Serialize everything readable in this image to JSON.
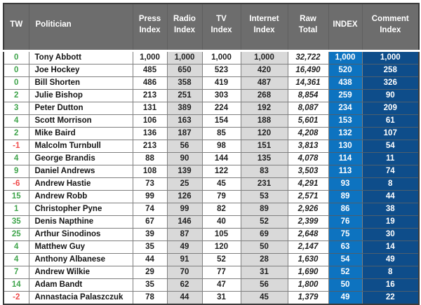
{
  "colors": {
    "header_bg": "#6d6d6d",
    "header_text": "#ffffff",
    "shaded_bg": "#d9d9d9",
    "index_bg": "#0d73c0",
    "comment_bg": "#0e4d8a",
    "positive_tw": "#3fa44b",
    "negative_tw": "#f04b4b"
  },
  "chart_data": {
    "type": "table",
    "title": "Politician media coverage index table",
    "columns": [
      {
        "id": "tw",
        "label_lines": [
          "TW"
        ]
      },
      {
        "id": "politician",
        "label_lines": [
          "Politician"
        ]
      },
      {
        "id": "press",
        "label_lines": [
          "Press",
          "Index"
        ]
      },
      {
        "id": "radio",
        "label_lines": [
          "Radio",
          "Index"
        ]
      },
      {
        "id": "tv",
        "label_lines": [
          "TV",
          "Index"
        ]
      },
      {
        "id": "internet",
        "label_lines": [
          "Internet",
          "Index"
        ]
      },
      {
        "id": "raw_total",
        "label_lines": [
          "Raw",
          "Total"
        ]
      },
      {
        "id": "index",
        "label_lines": [
          "INDEX"
        ]
      },
      {
        "id": "comment",
        "label_lines": [
          "Comment",
          "Index"
        ]
      }
    ],
    "rows": [
      {
        "tw": "0",
        "politician": "Tony Abbott",
        "press": "1,000",
        "radio": "1,000",
        "tv": "1,000",
        "internet": "1,000",
        "raw_total": "32,722",
        "index": "1,000",
        "comment": "1,000"
      },
      {
        "tw": "0",
        "politician": "Joe Hockey",
        "press": "485",
        "radio": "650",
        "tv": "523",
        "internet": "420",
        "raw_total": "16,490",
        "index": "520",
        "comment": "258"
      },
      {
        "tw": "0",
        "politician": "Bill Shorten",
        "press": "486",
        "radio": "358",
        "tv": "419",
        "internet": "487",
        "raw_total": "14,361",
        "index": "438",
        "comment": "326"
      },
      {
        "tw": "2",
        "politician": "Julie Bishop",
        "press": "213",
        "radio": "251",
        "tv": "303",
        "internet": "268",
        "raw_total": "8,854",
        "index": "259",
        "comment": "90"
      },
      {
        "tw": "3",
        "politician": "Peter Dutton",
        "press": "131",
        "radio": "389",
        "tv": "224",
        "internet": "192",
        "raw_total": "8,087",
        "index": "234",
        "comment": "209"
      },
      {
        "tw": "4",
        "politician": "Scott Morrison",
        "press": "106",
        "radio": "163",
        "tv": "154",
        "internet": "188",
        "raw_total": "5,601",
        "index": "153",
        "comment": "61"
      },
      {
        "tw": "2",
        "politician": "Mike Baird",
        "press": "136",
        "radio": "187",
        "tv": "85",
        "internet": "120",
        "raw_total": "4,208",
        "index": "132",
        "comment": "107"
      },
      {
        "tw": "-1",
        "politician": "Malcolm Turnbull",
        "press": "213",
        "radio": "56",
        "tv": "98",
        "internet": "151",
        "raw_total": "3,813",
        "index": "130",
        "comment": "54"
      },
      {
        "tw": "4",
        "politician": "George Brandis",
        "press": "88",
        "radio": "90",
        "tv": "144",
        "internet": "135",
        "raw_total": "4,078",
        "index": "114",
        "comment": "11"
      },
      {
        "tw": "9",
        "politician": "Daniel Andrews",
        "press": "108",
        "radio": "139",
        "tv": "122",
        "internet": "83",
        "raw_total": "3,503",
        "index": "113",
        "comment": "74"
      },
      {
        "tw": "-6",
        "politician": "Andrew Hastie",
        "press": "73",
        "radio": "25",
        "tv": "45",
        "internet": "231",
        "raw_total": "4,291",
        "index": "93",
        "comment": "8"
      },
      {
        "tw": "15",
        "politician": "Andrew Robb",
        "press": "99",
        "radio": "126",
        "tv": "79",
        "internet": "53",
        "raw_total": "2,571",
        "index": "89",
        "comment": "44"
      },
      {
        "tw": "1",
        "politician": "Christopher Pyne",
        "press": "74",
        "radio": "99",
        "tv": "82",
        "internet": "89",
        "raw_total": "2,926",
        "index": "86",
        "comment": "38"
      },
      {
        "tw": "35",
        "politician": "Denis Napthine",
        "press": "67",
        "radio": "146",
        "tv": "40",
        "internet": "52",
        "raw_total": "2,399",
        "index": "76",
        "comment": "19"
      },
      {
        "tw": "25",
        "politician": "Arthur Sinodinos",
        "press": "39",
        "radio": "87",
        "tv": "105",
        "internet": "69",
        "raw_total": "2,648",
        "index": "75",
        "comment": "30"
      },
      {
        "tw": "4",
        "politician": "Matthew Guy",
        "press": "35",
        "radio": "49",
        "tv": "120",
        "internet": "50",
        "raw_total": "2,147",
        "index": "63",
        "comment": "14"
      },
      {
        "tw": "4",
        "politician": "Anthony Albanese",
        "press": "44",
        "radio": "91",
        "tv": "52",
        "internet": "28",
        "raw_total": "1,630",
        "index": "54",
        "comment": "49"
      },
      {
        "tw": "7",
        "politician": "Andrew Wilkie",
        "press": "29",
        "radio": "70",
        "tv": "77",
        "internet": "31",
        "raw_total": "1,690",
        "index": "52",
        "comment": "8"
      },
      {
        "tw": "14",
        "politician": "Adam Bandt",
        "press": "35",
        "radio": "62",
        "tv": "47",
        "internet": "56",
        "raw_total": "1,800",
        "index": "50",
        "comment": "16"
      },
      {
        "tw": "-2",
        "politician": "Annastacia Palaszczuk",
        "press": "78",
        "radio": "44",
        "tv": "31",
        "internet": "45",
        "raw_total": "1,379",
        "index": "49",
        "comment": "22"
      }
    ]
  }
}
